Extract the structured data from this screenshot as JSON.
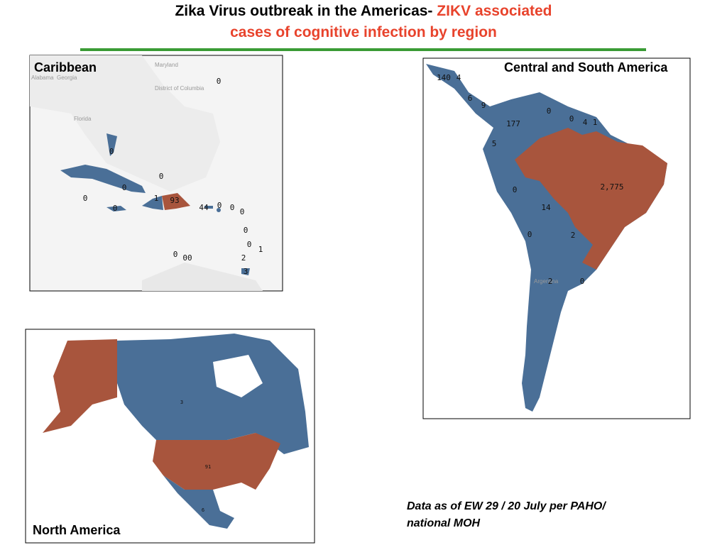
{
  "title": {
    "black": "Zika Virus outbreak in the Americas-",
    "red_1": "ZIKV associated",
    "red_2": "cases of cognitive infection by region"
  },
  "caribbean": {
    "title": "Caribbean",
    "base_labels": [
      "Maryland",
      "Alabama",
      "Georgia",
      "District of Columbia",
      "Florida"
    ],
    "labels": [
      "0",
      "0",
      "0",
      "0",
      "0",
      "1",
      "93",
      "44",
      "0",
      "0",
      "0",
      "0",
      "0",
      "0",
      "1",
      "0",
      "00",
      "2",
      "3"
    ]
  },
  "central_south_america": {
    "title": "Central and South America",
    "base_labels": [
      "Argentina"
    ],
    "labels": [
      "140",
      "4",
      "6",
      "9",
      "0",
      "177",
      "0",
      "4",
      "1",
      "5",
      "2,775",
      "0",
      "14",
      "0",
      "2",
      "2",
      "0"
    ]
  },
  "north_america": {
    "title": "North America",
    "labels": [
      "91",
      "6",
      "3"
    ]
  },
  "footnote": [
    "Data as of EW 29 / 20 July per PAHO/",
    "national MOH"
  ]
}
